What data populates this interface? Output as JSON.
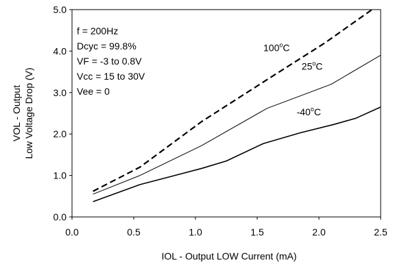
{
  "chart_data": {
    "type": "line",
    "xlabel": "IOL - Output LOW Current (mA)",
    "ylabel_line1": "VOL - Output",
    "ylabel_line2": "Low Voltage Drop (V)",
    "xlim": [
      0.0,
      2.5
    ],
    "ylim": [
      0.0,
      5.0
    ],
    "x_ticks": [
      "0.0",
      "0.5",
      "1.0",
      "1.5",
      "2.0",
      "2.5"
    ],
    "y_ticks": [
      "0.0",
      "1.0",
      "2.0",
      "3.0",
      "4.0",
      "5.0"
    ],
    "grid": false,
    "conditions": [
      "f = 200Hz",
      "Dcyc = 99.8%",
      "VF = -3 to 0.8V",
      "Vcc = 15 to 30V",
      "Vee = 0"
    ],
    "series": [
      {
        "name": "100°C",
        "label_main": "100",
        "label_sup": "o",
        "label_unit": "C",
        "style": "dashed",
        "points": [
          [
            0.17,
            0.62
          ],
          [
            0.55,
            1.2
          ],
          [
            1.05,
            2.3
          ],
          [
            1.6,
            3.35
          ],
          [
            2.05,
            4.2
          ],
          [
            2.43,
            5.0
          ]
        ]
      },
      {
        "name": "25°C",
        "label_main": "25",
        "label_sup": "o",
        "label_unit": "C",
        "style": "solid-thin",
        "points": [
          [
            0.17,
            0.55
          ],
          [
            0.55,
            1.0
          ],
          [
            1.05,
            1.72
          ],
          [
            1.58,
            2.62
          ],
          [
            2.1,
            3.2
          ],
          [
            2.5,
            3.9
          ]
        ]
      },
      {
        "name": "-40°C",
        "label_main": "-40",
        "label_sup": "o",
        "label_unit": "C",
        "style": "solid",
        "points": [
          [
            0.17,
            0.37
          ],
          [
            0.55,
            0.78
          ],
          [
            1.05,
            1.17
          ],
          [
            1.25,
            1.35
          ],
          [
            1.55,
            1.77
          ],
          [
            1.85,
            2.03
          ],
          [
            2.12,
            2.23
          ],
          [
            2.3,
            2.38
          ],
          [
            2.5,
            2.65
          ]
        ]
      }
    ]
  }
}
